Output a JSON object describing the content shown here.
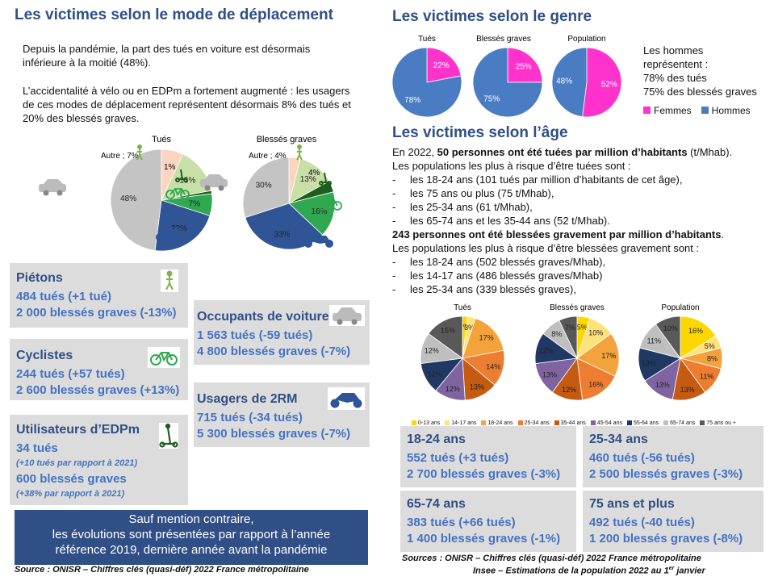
{
  "left": {
    "title": "Les victimes selon le mode de déplacement",
    "para1": "Depuis la pandémie, la part des tués en voiture est désormais inférieure à la moitié (48%).",
    "para2": "L’accidentalité à vélo ou en EDPm a fortement augmenté : les usagers de ces modes de déplacement représentent désormais 8% des tués et 20% des blessés graves.",
    "boxes": {
      "pietons": {
        "title": "Piétons",
        "l1": "484 tués (+1 tué)",
        "l2": "2 000 blessés graves (-13%)"
      },
      "cyclistes": {
        "title": "Cyclistes",
        "l1": "244 tués (+57 tués)",
        "l2": "2 600 blessés graves (+13%)"
      },
      "edpm": {
        "title": "Utilisateurs d’EDPm",
        "l1": "34 tués",
        "s1": "(+10 tués par rapport à 2021)",
        "l2": "600 blessés graves",
        "s2": "(+38% par rapport à 2021)"
      },
      "voiture": {
        "title": "Occupants de voiture",
        "l1": "1 563 tués (-59 tués)",
        "l2": "4 800 blessés graves (-7%)"
      },
      "deuxrm": {
        "title": "Usagers de 2RM",
        "l1": "715 tués (-34 tués)",
        "l2": "5 300 blessés graves (-7%)"
      }
    },
    "banner": {
      "l1": "Sauf mention contraire,",
      "l2": "les évolutions sont présentées par rapport à l’année",
      "l3": "référence 2019, dernière année avant la pandémie"
    },
    "source": "Source : ONISR – Chiffres clés (quasi-déf) 2022 France métropolitaine"
  },
  "right": {
    "title_genre": "Les victimes selon le genre",
    "genre_note": [
      "Les hommes",
      "représentent :",
      "78% des tués",
      "75% des blessés graves"
    ],
    "title_age": "Les victimes selon l’âge",
    "age_p1_a": "En 2022, ",
    "age_p1_b": "50 personnes ont été tuées par million d’habitants",
    "age_p1_c": " (t/Mhab).",
    "age_p2": "Les populations les plus à risque d’être tuées sont :",
    "age_list1": [
      "les 18-24 ans (101 tués par million d’habitants de cet âge),",
      "les 75 ans ou plus (75 t/Mhab),",
      "les 25-34 ans (61 t/Mhab),",
      "les 65-74 ans et les 35-44 ans (52 t/Mhab)."
    ],
    "age_p3": "243 personnes ont été blessées gravement par million d’habitants",
    "age_p3_end": ".",
    "age_p4": "Les populations les plus à risque d’être blessées gravement sont :",
    "age_list2": [
      "les 18-24 ans (502 blessés graves/Mhab),",
      "les 14-17 ans (486 blessés graves/Mhab)",
      "les 25-34 ans (339 blessés graves),"
    ],
    "boxes": {
      "a1824": {
        "title": "18-24 ans",
        "l1": "552 tués (+3 tués)",
        "l2": "2 700 blessés graves (-3%)"
      },
      "a2534": {
        "title": "25-34 ans",
        "l1": "460 tués (-56 tués)",
        "l2": "2 500 blessés graves (-3%)"
      },
      "a6574": {
        "title": "65-74 ans",
        "l1": "383 tués (+66 tués)",
        "l2": "1 400 blessés graves (-1%)"
      },
      "a75": {
        "title": "75 ans et plus",
        "l1": "492 tués (-40 tués)",
        "l2": "1 200 blessés graves (-8%)"
      }
    },
    "source1": "Sources : ONISR – Chiffres clés (quasi-déf) 2022 France métropolitaine",
    "source2a": "Insee – Estimations de la population 2022 au 1",
    "source2b": "er",
    "source2c": " janvier"
  },
  "chart_data": [
    {
      "type": "pie",
      "title": "Tués",
      "categories": [
        "Autre",
        "Piétons",
        "EDPm",
        "Vélo",
        "2RM",
        "Voiture"
      ],
      "values": [
        7,
        15,
        1,
        7,
        22,
        48
      ],
      "labels": [
        "Autre ; 7%",
        "15%",
        "1%",
        "7%",
        "22%",
        "48%"
      ],
      "colors": [
        "#fcd5c0",
        "#c8dfa8",
        "#1e5e1e",
        "#2fa84f",
        "#2f5597",
        "#c4c4c4"
      ]
    },
    {
      "type": "pie",
      "title": "Blessés graves",
      "categories": [
        "Autre",
        "Piétons",
        "EDPm",
        "Vélo",
        "2RM",
        "Voiture"
      ],
      "values": [
        4,
        13,
        4,
        16,
        33,
        30
      ],
      "labels": [
        "Autre ; 4%",
        "13%",
        "4%",
        "16%",
        "33%",
        "30%"
      ],
      "colors": [
        "#fcd5c0",
        "#c8dfa8",
        "#1e5e1e",
        "#2fa84f",
        "#2f5597",
        "#c4c4c4"
      ]
    },
    {
      "type": "pie",
      "title": "Tués",
      "categories": [
        "Femmes",
        "Hommes"
      ],
      "values": [
        22,
        78
      ],
      "colors": [
        "#ff33cc",
        "#4a7cc4"
      ]
    },
    {
      "type": "pie",
      "title": "Blessés graves",
      "categories": [
        "Femmes",
        "Hommes"
      ],
      "values": [
        25,
        75
      ],
      "colors": [
        "#ff33cc",
        "#4a7cc4"
      ]
    },
    {
      "type": "pie",
      "title": "Population",
      "categories": [
        "Femmes",
        "Hommes"
      ],
      "values": [
        52,
        48
      ],
      "colors": [
        "#ff33cc",
        "#4a7cc4"
      ],
      "legend": [
        "Femmes",
        "Hommes"
      ]
    },
    {
      "type": "pie",
      "title": "Tués",
      "categories": [
        "0-13 ans",
        "14-17 ans",
        "18-24 ans",
        "25-34 ans",
        "35-44 ans",
        "45-54 ans",
        "55-64 ans",
        "65-74 ans",
        "75 ans ou +"
      ],
      "values": [
        2,
        3,
        17,
        14,
        13,
        12,
        12,
        12,
        15
      ],
      "colors": [
        "#ffd700",
        "#ffe27a",
        "#f4a23c",
        "#ed7d31",
        "#c55a11",
        "#8064a2",
        "#1f3864",
        "#bfbfbf",
        "#595959"
      ]
    },
    {
      "type": "pie",
      "title": "Blessés graves",
      "categories": [
        "0-13 ans",
        "14-17 ans",
        "18-24 ans",
        "25-34 ans",
        "35-44 ans",
        "45-54 ans",
        "55-64 ans",
        "65-74 ans",
        "75 ans ou +"
      ],
      "values": [
        5,
        10,
        17,
        16,
        12,
        13,
        12,
        8,
        7
      ],
      "colors": [
        "#ffd700",
        "#ffe27a",
        "#f4a23c",
        "#ed7d31",
        "#c55a11",
        "#8064a2",
        "#1f3864",
        "#bfbfbf",
        "#595959"
      ]
    },
    {
      "type": "pie",
      "title": "Population",
      "categories": [
        "0-13 ans",
        "14-17 ans",
        "18-24 ans",
        "25-34 ans",
        "35-44 ans",
        "45-54 ans",
        "55-64 ans",
        "65-74 ans",
        "75 ans ou +"
      ],
      "values": [
        16,
        5,
        8,
        11,
        13,
        13,
        13,
        11,
        10
      ],
      "colors": [
        "#ffd700",
        "#ffe27a",
        "#f4a23c",
        "#ed7d31",
        "#c55a11",
        "#8064a2",
        "#1f3864",
        "#bfbfbf",
        "#595959"
      ],
      "legend": [
        "0-13 ans",
        "14-17 ans",
        "18-24 ans",
        "25-34 ans",
        "35-44 ans",
        "45-54 ans",
        "55-64 ans",
        "65-74 ans",
        "75 ans ou +"
      ]
    }
  ]
}
